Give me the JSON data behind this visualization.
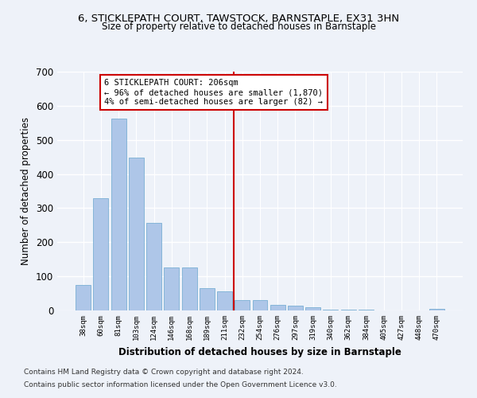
{
  "title1": "6, STICKLEPATH COURT, TAWSTOCK, BARNSTAPLE, EX31 3HN",
  "title2": "Size of property relative to detached houses in Barnstaple",
  "xlabel": "Distribution of detached houses by size in Barnstaple",
  "ylabel": "Number of detached properties",
  "categories": [
    "38sqm",
    "60sqm",
    "81sqm",
    "103sqm",
    "124sqm",
    "146sqm",
    "168sqm",
    "189sqm",
    "211sqm",
    "232sqm",
    "254sqm",
    "276sqm",
    "297sqm",
    "319sqm",
    "340sqm",
    "362sqm",
    "384sqm",
    "405sqm",
    "427sqm",
    "448sqm",
    "470sqm"
  ],
  "values": [
    75,
    330,
    563,
    447,
    257,
    125,
    125,
    65,
    55,
    30,
    30,
    16,
    13,
    10,
    3,
    3,
    3,
    0,
    0,
    0,
    5
  ],
  "bar_color": "#aec6e8",
  "bar_edge_color": "#7aafd4",
  "vline_x": 8.5,
  "vline_color": "#cc0000",
  "annotation_title": "6 STICKLEPATH COURT: 206sqm",
  "annotation_line1": "← 96% of detached houses are smaller (1,870)",
  "annotation_line2": "4% of semi-detached houses are larger (82) →",
  "annotation_box_color": "#ffffff",
  "annotation_box_edge": "#cc0000",
  "ylim": [
    0,
    700
  ],
  "yticks": [
    0,
    100,
    200,
    300,
    400,
    500,
    600,
    700
  ],
  "background_color": "#eef2f9",
  "grid_color": "#ffffff",
  "footer1": "Contains HM Land Registry data © Crown copyright and database right 2024.",
  "footer2": "Contains public sector information licensed under the Open Government Licence v3.0."
}
